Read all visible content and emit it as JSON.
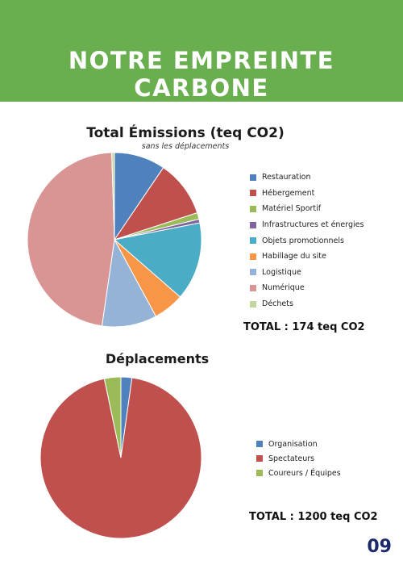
{
  "header": {
    "title": "NOTRE EMPREINTE CARBONE",
    "background_color": "#6aaf4f"
  },
  "chart_data": [
    {
      "type": "pie",
      "title": "Total Émissions (teq CO2)",
      "subtitle": "sans les déplacements",
      "total_label": "TOTAL : 174 teq CO2",
      "legend_position": "right",
      "categories": [
        "Restauration",
        "Hébergement",
        "Matériel Sportif",
        "Infrastructures et énergies",
        "Objets promotionnels",
        "Habillage du site",
        "Logistique",
        "Numérique",
        "Déchets"
      ],
      "values": [
        9.5,
        10.5,
        1.2,
        0.7,
        14.5,
        5.7,
        10.2,
        47.2,
        0.5
      ],
      "colors": [
        "#4f81bd",
        "#c0504d",
        "#9bbb59",
        "#8064a2",
        "#4bacc6",
        "#f79646",
        "#95b3d7",
        "#d99594",
        "#c3d69b"
      ]
    },
    {
      "type": "pie",
      "title": "Déplacements",
      "total_label": "TOTAL : 1200 teq CO2",
      "legend_position": "right",
      "categories": [
        "Organisation",
        "Spectateurs",
        "Coureurs / Équipes"
      ],
      "values": [
        2.2,
        94.5,
        3.3
      ],
      "colors": [
        "#4f81bd",
        "#c0504d",
        "#9bbb59"
      ]
    }
  ],
  "page_number": "09"
}
